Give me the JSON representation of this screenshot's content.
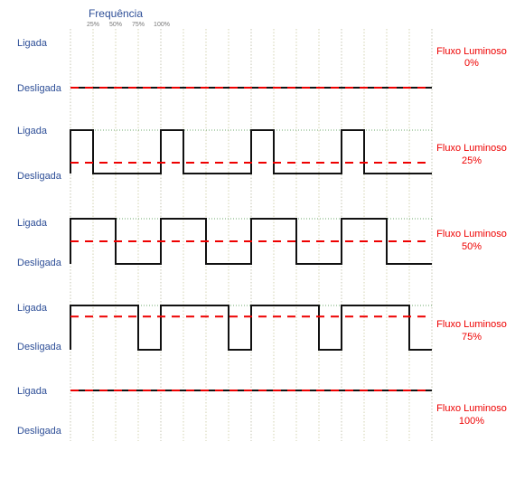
{
  "header": {
    "title": "Frequência",
    "ticks": [
      "25%",
      "50%",
      "75%",
      "100%"
    ]
  },
  "labels": {
    "on": "Ligada",
    "off": "Desligada"
  },
  "colors": {
    "label_blue": "#2d4e97",
    "signal": "#111111",
    "average": "#ee0000",
    "grid": "#c9c9a0",
    "high_guide": "#3c8c3c"
  },
  "panels": [
    {
      "duty_percent": 0,
      "flux_label": "Fluxo Luminoso",
      "flux_value": "0%"
    },
    {
      "duty_percent": 25,
      "flux_label": "Fluxo Luminoso",
      "flux_value": "25%"
    },
    {
      "duty_percent": 50,
      "flux_label": "Fluxo Luminoso",
      "flux_value": "50%"
    },
    {
      "duty_percent": 75,
      "flux_label": "Fluxo Luminoso",
      "flux_value": "75%"
    },
    {
      "duty_percent": 100,
      "flux_label": "Fluxo Luminoso",
      "flux_value": "100%"
    }
  ]
}
